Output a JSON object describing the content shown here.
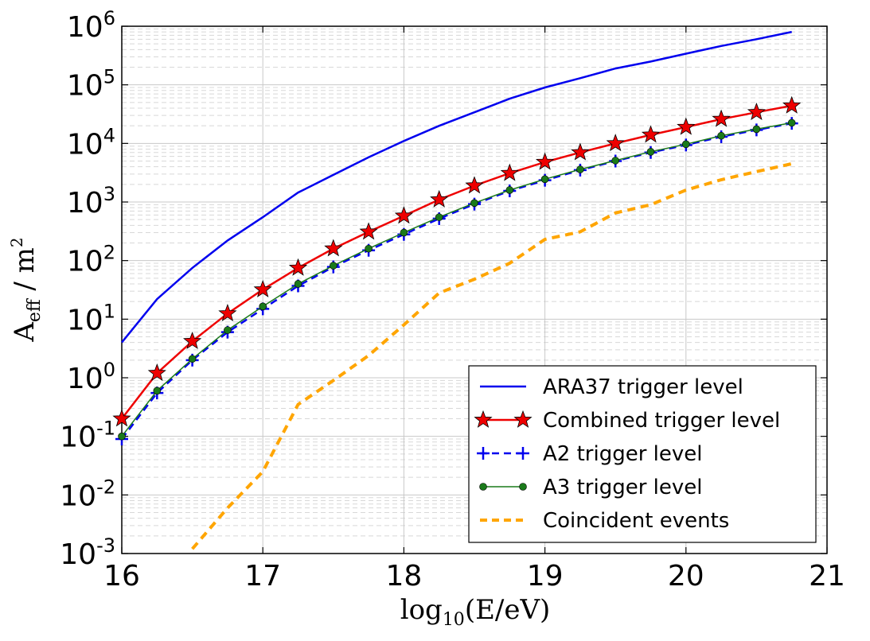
{
  "chart_data": {
    "type": "line",
    "xlabel": {
      "base": "log",
      "sub": "10",
      "rest": "(E/eV)"
    },
    "ylabel": {
      "base": "A",
      "sub": "eff",
      "rest": " / m",
      "sup": "2"
    },
    "xlim": [
      16,
      21
    ],
    "xticks": [
      "16",
      "17",
      "18",
      "19",
      "20",
      "21"
    ],
    "yscale": "log",
    "ylim_exponents": [
      -3,
      6
    ],
    "yticks": [
      {
        "base": "10",
        "exp": "-3"
      },
      {
        "base": "10",
        "exp": "-2"
      },
      {
        "base": "10",
        "exp": "-1"
      },
      {
        "base": "10",
        "exp": "0"
      },
      {
        "base": "10",
        "exp": "1"
      },
      {
        "base": "10",
        "exp": "2"
      },
      {
        "base": "10",
        "exp": "3"
      },
      {
        "base": "10",
        "exp": "4"
      },
      {
        "base": "10",
        "exp": "5"
      },
      {
        "base": "10",
        "exp": "6"
      }
    ],
    "grid": true,
    "legend_position": "bottom-right",
    "series": [
      {
        "name": "ARA37 trigger level",
        "color": "#0000ee",
        "style": "solid",
        "marker": "none",
        "x": [
          16.0,
          16.25,
          16.5,
          16.75,
          17.0,
          17.25,
          17.5,
          17.75,
          18.0,
          18.25,
          18.5,
          18.75,
          19.0,
          19.25,
          19.5,
          19.75,
          20.0,
          20.25,
          20.5,
          20.75
        ],
        "y": [
          4,
          22,
          75,
          220,
          550,
          1450,
          2900,
          5800,
          11000,
          20000,
          34000,
          58000,
          90000,
          130000,
          190000,
          250000,
          340000,
          460000,
          600000,
          800000
        ]
      },
      {
        "name": "Combined trigger level",
        "color": "#ee0000",
        "style": "solid",
        "marker": "star",
        "x": [
          16.0,
          16.25,
          16.5,
          16.75,
          17.0,
          17.25,
          17.5,
          17.75,
          18.0,
          18.25,
          18.5,
          18.75,
          19.0,
          19.25,
          19.5,
          19.75,
          20.0,
          20.25,
          20.5,
          20.75
        ],
        "y": [
          0.2,
          1.2,
          4.2,
          12.5,
          32,
          75,
          160,
          310,
          580,
          1100,
          1900,
          3100,
          4800,
          7000,
          10000,
          14000,
          19000,
          26000,
          34000,
          44000
        ]
      },
      {
        "name": "A2 trigger level",
        "color": "#0000ee",
        "style": "dashed",
        "marker": "plus",
        "x": [
          16.0,
          16.25,
          16.5,
          16.75,
          17.0,
          17.25,
          17.5,
          17.75,
          18.0,
          18.25,
          18.5,
          18.75,
          19.0,
          19.25,
          19.5,
          19.75,
          20.0,
          20.25,
          20.5,
          20.75
        ],
        "y": [
          0.09,
          0.55,
          2.0,
          6.0,
          15,
          37,
          78,
          150,
          280,
          520,
          920,
          1550,
          2350,
          3500,
          5000,
          7000,
          9400,
          13000,
          17000,
          22000
        ]
      },
      {
        "name": "A3 trigger level",
        "color": "#1a7a1a",
        "style": "solid",
        "marker": "dot",
        "x": [
          16.0,
          16.25,
          16.5,
          16.75,
          17.0,
          17.25,
          17.5,
          17.75,
          18.0,
          18.25,
          18.5,
          18.75,
          19.0,
          19.25,
          19.5,
          19.75,
          20.0,
          20.25,
          20.5,
          20.75
        ],
        "y": [
          0.1,
          0.6,
          2.1,
          6.5,
          16.5,
          40,
          82,
          160,
          300,
          550,
          960,
          1600,
          2450,
          3600,
          5100,
          7200,
          9700,
          13500,
          17500,
          22500
        ]
      },
      {
        "name": "Coincident events",
        "color": "#ffa500",
        "style": "dashed",
        "marker": "none",
        "x": [
          16.5,
          16.75,
          17.0,
          17.25,
          17.5,
          17.75,
          18.0,
          18.25,
          18.5,
          18.75,
          19.0,
          19.25,
          19.5,
          19.75,
          20.0,
          20.25,
          20.5,
          20.75
        ],
        "y": [
          0.0012,
          0.006,
          0.025,
          0.35,
          0.9,
          2.4,
          8,
          28,
          48,
          90,
          230,
          310,
          650,
          900,
          1600,
          2400,
          3300,
          4500
        ]
      }
    ]
  }
}
